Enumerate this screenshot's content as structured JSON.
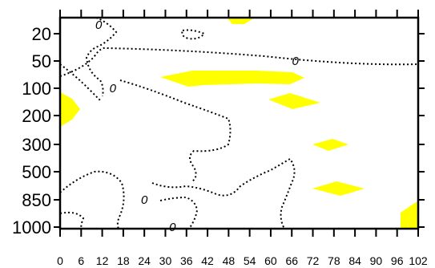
{
  "chart_data": {
    "type": "contour",
    "title": "",
    "xlabel": "",
    "ylabel": "",
    "x_tick_labels": [
      "0",
      "6",
      "12",
      "18",
      "24",
      "30",
      "36",
      "42",
      "48",
      "54",
      "60",
      "66",
      "72",
      "78",
      "84",
      "90",
      "96",
      "102"
    ],
    "x_tick_values": [
      0,
      6,
      12,
      18,
      24,
      30,
      36,
      42,
      48,
      54,
      60,
      66,
      72,
      78,
      84,
      90,
      96,
      102
    ],
    "y_tick_labels": [
      "20",
      "50",
      "100",
      "200",
      "300",
      "500",
      "850",
      "1000"
    ],
    "xlim": [
      0,
      102
    ],
    "y_category_order_top_to_bottom": [
      "20",
      "50",
      "100",
      "200",
      "300",
      "500",
      "850",
      "1000"
    ],
    "shading_color": "#ffff00",
    "contour_color": "#000000",
    "contour_style": "dotted",
    "contour_labels": [
      {
        "text": "0",
        "x": 11,
        "y_level": "20"
      },
      {
        "text": "0",
        "x": 67,
        "y_level": "50"
      },
      {
        "text": "0",
        "x": 15,
        "y_level": "100"
      },
      {
        "text": "0",
        "x": 24,
        "y_level": "850"
      },
      {
        "text": "0",
        "x": 32,
        "y_level": "1000"
      }
    ],
    "shaded_regions": [
      {
        "name": "region-top-center",
        "x_range": [
          48,
          58
        ],
        "y_range": [
          "20",
          "20"
        ]
      },
      {
        "name": "region-upper-band",
        "x_range": [
          30,
          68
        ],
        "y_range": [
          "50",
          "100"
        ]
      },
      {
        "name": "region-left-edge",
        "x_range": [
          0,
          6
        ],
        "y_range": [
          "100",
          "200"
        ]
      },
      {
        "name": "region-right-upper",
        "x_range": [
          60,
          72
        ],
        "y_range": [
          "100",
          "200"
        ]
      },
      {
        "name": "region-right-mid",
        "x_range": [
          72,
          80
        ],
        "y_range": [
          "300",
          "300"
        ]
      },
      {
        "name": "region-right-lower",
        "x_range": [
          72,
          84
        ],
        "y_range": [
          "850",
          "850"
        ]
      },
      {
        "name": "region-bottom-right-corner",
        "x_range": [
          96,
          102
        ],
        "y_range": [
          "850",
          "1000"
        ]
      }
    ]
  }
}
